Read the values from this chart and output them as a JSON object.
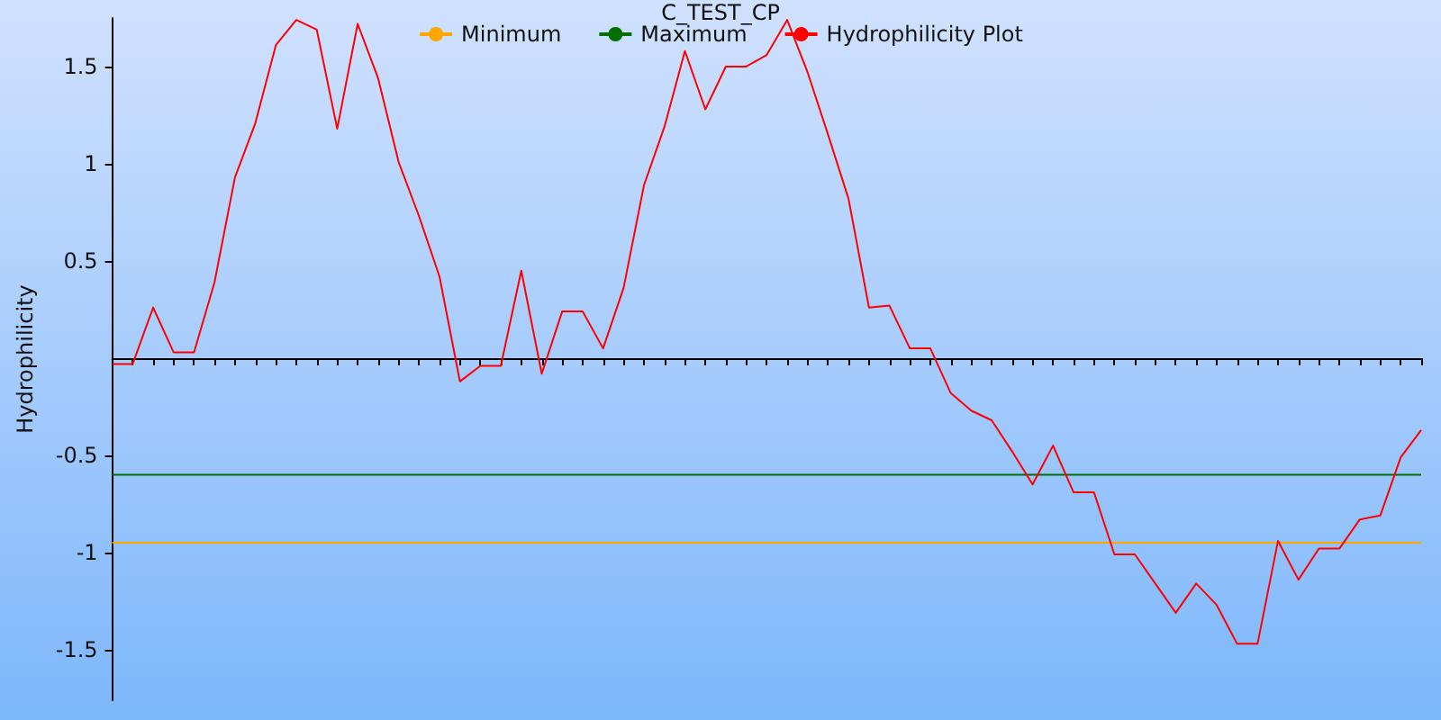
{
  "chart_data": {
    "type": "line",
    "title": "C_TEST_CP",
    "ylabel": "Hydrophilicity",
    "categories": [
      null,
      null,
      null,
      null,
      null,
      null,
      null,
      null,
      null,
      null,
      null,
      null,
      null,
      null,
      null,
      null,
      null,
      null,
      null,
      null,
      null,
      null,
      null,
      null,
      null,
      null,
      null,
      null,
      null,
      null,
      null,
      null,
      null,
      null,
      null,
      null,
      null,
      null,
      null,
      null,
      null,
      null,
      null,
      null,
      null,
      null,
      null,
      null,
      null,
      null,
      null,
      null,
      null,
      null,
      null,
      null,
      null,
      null,
      null,
      null,
      null,
      null,
      null,
      null,
      null
    ],
    "series": [
      {
        "name": "Minimum",
        "color": "#ffa500",
        "values": [
          -0.95,
          -0.95,
          -0.95,
          -0.95,
          -0.95,
          -0.95,
          -0.95,
          -0.95,
          -0.95,
          -0.95,
          -0.95,
          -0.95,
          -0.95,
          -0.95,
          -0.95,
          -0.95,
          -0.95,
          -0.95,
          -0.95,
          -0.95,
          -0.95,
          -0.95,
          -0.95,
          -0.95,
          -0.95,
          -0.95,
          -0.95,
          -0.95,
          -0.95,
          -0.95,
          -0.95,
          -0.95,
          -0.95,
          -0.95,
          -0.95,
          -0.95,
          -0.95,
          -0.95,
          -0.95,
          -0.95,
          -0.95,
          -0.95,
          -0.95,
          -0.95,
          -0.95,
          -0.95,
          -0.95,
          -0.95,
          -0.95,
          -0.95,
          -0.95,
          -0.95,
          -0.95,
          -0.95,
          -0.95,
          -0.95,
          -0.95,
          -0.95,
          -0.95,
          -0.95,
          -0.95,
          -0.95,
          -0.95,
          -0.95,
          -0.95
        ]
      },
      {
        "name": "Maximum",
        "color": "#007000",
        "values": [
          -0.6,
          -0.6,
          -0.6,
          -0.6,
          -0.6,
          -0.6,
          -0.6,
          -0.6,
          -0.6,
          -0.6,
          -0.6,
          -0.6,
          -0.6,
          -0.6,
          -0.6,
          -0.6,
          -0.6,
          -0.6,
          -0.6,
          -0.6,
          -0.6,
          -0.6,
          -0.6,
          -0.6,
          -0.6,
          -0.6,
          -0.6,
          -0.6,
          -0.6,
          -0.6,
          -0.6,
          -0.6,
          -0.6,
          -0.6,
          -0.6,
          -0.6,
          -0.6,
          -0.6,
          -0.6,
          -0.6,
          -0.6,
          -0.6,
          -0.6,
          -0.6,
          -0.6,
          -0.6,
          -0.6,
          -0.6,
          -0.6,
          -0.6,
          -0.6,
          -0.6,
          -0.6,
          -0.6,
          -0.6,
          -0.6,
          -0.6,
          -0.6,
          -0.6,
          -0.6,
          -0.6,
          -0.6,
          -0.6,
          -0.6,
          -0.6
        ]
      },
      {
        "name": "Hydrophilicity Plot",
        "color": "#ff0000",
        "values": [
          -0.03,
          -0.03,
          0.26,
          0.03,
          0.03,
          0.39,
          0.93,
          1.21,
          1.61,
          1.74,
          1.69,
          1.18,
          1.72,
          1.44,
          1.01,
          0.73,
          0.42,
          -0.12,
          -0.04,
          -0.04,
          0.45,
          -0.08,
          0.24,
          0.24,
          0.05,
          0.36,
          0.89,
          1.19,
          1.58,
          1.28,
          1.5,
          1.5,
          1.56,
          1.74,
          1.47,
          1.15,
          0.82,
          0.26,
          0.27,
          0.05,
          0.05,
          -0.18,
          -0.27,
          -0.32,
          -0.48,
          -0.65,
          -0.45,
          -0.69,
          -0.69,
          -1.01,
          -1.01,
          -1.16,
          -1.31,
          -1.16,
          -1.27,
          -1.47,
          -1.47,
          -0.94,
          -1.14,
          -0.98,
          -0.98,
          -0.83,
          -0.81,
          -0.51,
          -0.37
        ]
      }
    ],
    "ylim": [
      -1.76,
      1.75
    ],
    "yticks": [
      -1.5,
      -1,
      -0.5,
      0.5,
      1,
      1.5
    ],
    "legend": "top",
    "marker": "none",
    "line_style": "solid",
    "grid": false,
    "tick_labels": "y"
  }
}
